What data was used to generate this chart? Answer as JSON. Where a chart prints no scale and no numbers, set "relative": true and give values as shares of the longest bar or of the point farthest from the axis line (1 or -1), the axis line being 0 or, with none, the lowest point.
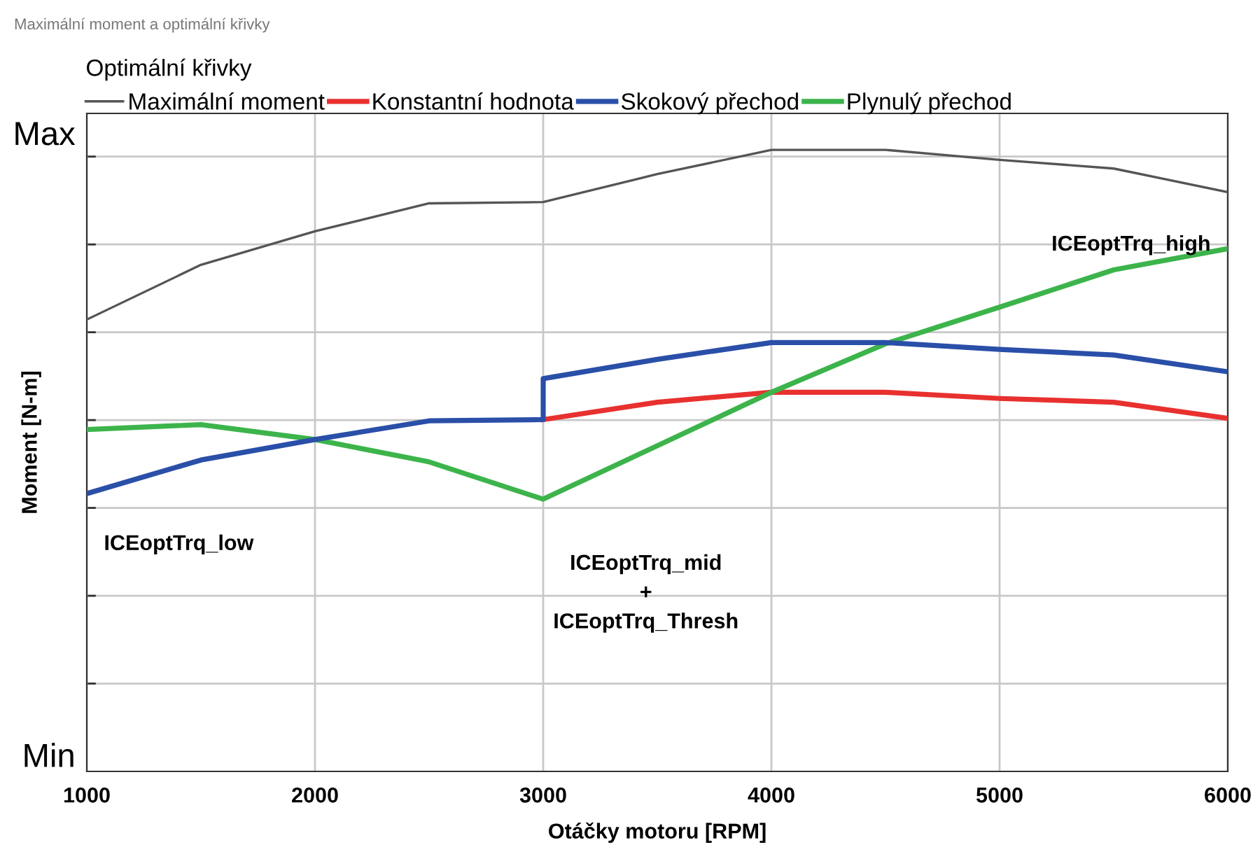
{
  "chart_data": {
    "type": "line",
    "title": "Maximální moment a optimální křivky",
    "xlabel": "Otáčky motoru [RPM]",
    "ylabel": "Moment [N-m]",
    "legend_title": "Optimální křivky",
    "x": [
      1000,
      1500,
      2000,
      2500,
      3000,
      3500,
      4000,
      4500,
      5000,
      5500,
      6000
    ],
    "series": [
      {
        "name": "Maximální moment",
        "color": "#555555",
        "values": [
          0.727,
          0.815,
          0.869,
          0.914,
          0.916,
          0.961,
          1,
          1,
          0.984,
          0.97,
          0.932
        ]
      },
      {
        "name": "Konstantní hodnota",
        "color": "#e8312f",
        "values": [
          null,
          null,
          null,
          null,
          0.566,
          0.594,
          0.61,
          0.61,
          0.6,
          0.594,
          0.568
        ]
      },
      {
        "name": "Skokový přechod",
        "color": "#2a4fa8",
        "x": [
          1000,
          1500,
          2000,
          2500,
          3000,
          3000,
          3500,
          4000,
          4500,
          5000,
          5500,
          6000
        ],
        "values": [
          0.447,
          0.501,
          0.534,
          0.564,
          0.566,
          0.632,
          0.663,
          0.69,
          0.69,
          0.679,
          0.67,
          0.643
        ]
      },
      {
        "name": "Plynulý přechod",
        "color": "#3cb44b",
        "values": [
          0.55,
          0.558,
          0.534,
          0.498,
          0.438,
          0.524,
          0.61,
          0.688,
          0.747,
          0.807,
          0.841
        ]
      }
    ],
    "annotations": [
      "ICEoptTrq_low",
      "ICEoptTrq_mid\n+\nICEoptTrq_Thresh",
      "ICEoptTrq_high",
      "Max",
      "Min"
    ],
    "relative": true,
    "xlim": [
      1000,
      6000
    ],
    "xticks": [
      1000,
      2000,
      3000,
      4000,
      5000,
      6000
    ],
    "grid": true,
    "legend": "top",
    "line_style": "solid",
    "marker": "none"
  }
}
